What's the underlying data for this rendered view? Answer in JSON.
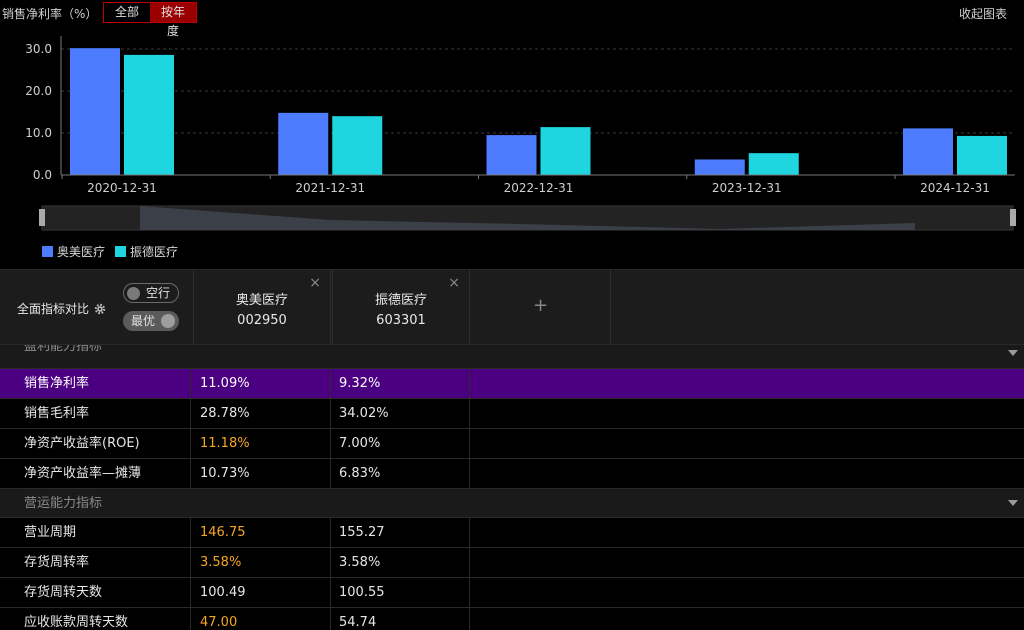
{
  "header": {
    "chart_title": "销售净利率（%）",
    "seg_all": "全部",
    "seg_year": "按年度",
    "collapse": "收起图表"
  },
  "colors": {
    "series_1": "#4d7cfe",
    "series_2": "#1fd6e0",
    "selected_row": "#4b0082",
    "highlight_value": "#f5a623",
    "active_segment": "#9b0000"
  },
  "chart_data": {
    "type": "bar",
    "categories": [
      "2020-12-31",
      "2021-12-31",
      "2022-12-31",
      "2023-12-31",
      "2024-12-31"
    ],
    "series": [
      {
        "name": "奥美医疗",
        "values": [
          30.2,
          14.8,
          9.5,
          3.7,
          11.1
        ]
      },
      {
        "name": "振德医疗",
        "values": [
          28.6,
          14.0,
          11.4,
          5.2,
          9.3
        ]
      }
    ],
    "y_ticks": [
      "0.0",
      "10.0",
      "20.0",
      "30.0"
    ],
    "ylim": [
      0,
      30
    ],
    "grid": true,
    "legend": "bottom-left"
  },
  "compare": {
    "label": "全面指标对比",
    "toggle_empty": "空行",
    "toggle_best": "最优",
    "stocks": [
      {
        "name": "奥美医疗",
        "code": "002950"
      },
      {
        "name": "振德医疗",
        "code": "603301"
      }
    ],
    "add_label": "+",
    "close_label": "×"
  },
  "table": {
    "section_1": "盈利能力指标",
    "section_2": "营运能力指标",
    "rows_1": [
      {
        "name": "销售净利率",
        "v1": "11.09%",
        "v2": "9.32%"
      },
      {
        "name": "销售毛利率",
        "v1": "28.78%",
        "v2": "34.02%"
      },
      {
        "name": "净资产收益率(ROE)",
        "v1": "11.18%",
        "v2": "7.00%"
      },
      {
        "name": "净资产收益率—摊薄",
        "v1": "10.73%",
        "v2": "6.83%"
      }
    ],
    "rows_2": [
      {
        "name": "营业周期",
        "v1": "146.75",
        "v2": "155.27"
      },
      {
        "name": "存货周转率",
        "v1": "3.58%",
        "v2": "3.58%"
      },
      {
        "name": "存货周转天数",
        "v1": "100.49",
        "v2": "100.55"
      },
      {
        "name": "应收账款周转天数",
        "v1": "47.00",
        "v2": "54.74"
      }
    ]
  }
}
